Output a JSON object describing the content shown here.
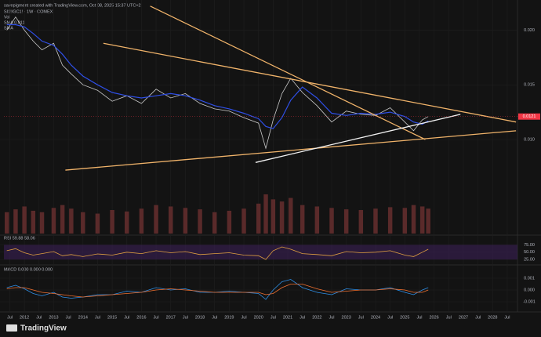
{
  "header": {
    "credit": "savepigment created with TradingView.com, Oct 08, 2025 15:37 UTC+2",
    "symbol": "SI1!/GC1! · 1W · COMEX",
    "volume": "Vol",
    "sma": "SMA 0.011",
    "sma2": "SMA",
    "brand": "TradingView"
  },
  "chart_data": [
    {
      "type": "line",
      "x": [
        2011.4,
        2011.7,
        2012,
        2012.3,
        2012.6,
        2013,
        2013.3,
        2013.6,
        2014,
        2014.5,
        2015,
        2015.5,
        2016,
        2016.5,
        2017,
        2017.5,
        2018,
        2018.5,
        2019,
        2019.5,
        2020,
        2020.25,
        2020.5,
        2020.8,
        2021.1,
        2021.5,
        2022,
        2022.5,
        2023,
        2023.5,
        2024,
        2024.5,
        2025,
        2025.3,
        2025.6,
        2025.8
      ],
      "series": [
        {
          "name": "SI1!/GC1!",
          "color": "#c9c9c9",
          "values": [
            0.02,
            0.0212,
            0.02,
            0.019,
            0.0182,
            0.0188,
            0.0168,
            0.016,
            0.015,
            0.0145,
            0.0135,
            0.014,
            0.0133,
            0.0146,
            0.0138,
            0.0142,
            0.0133,
            0.0128,
            0.0126,
            0.012,
            0.0115,
            0.0092,
            0.0118,
            0.0142,
            0.0156,
            0.0143,
            0.0131,
            0.0116,
            0.0126,
            0.0123,
            0.0122,
            0.0129,
            0.0116,
            0.0108,
            0.0118,
            0.0121
          ]
        },
        {
          "name": "SMA",
          "color": "#2f4fe6",
          "values": [
            0.0205,
            0.0205,
            0.0203,
            0.0197,
            0.019,
            0.0186,
            0.0178,
            0.0168,
            0.0158,
            0.015,
            0.0143,
            0.014,
            0.0138,
            0.014,
            0.0142,
            0.014,
            0.0136,
            0.0131,
            0.0128,
            0.0124,
            0.0119,
            0.0112,
            0.011,
            0.012,
            0.0136,
            0.0148,
            0.0138,
            0.0124,
            0.0122,
            0.0124,
            0.0123,
            0.0125,
            0.0121,
            0.0116,
            0.0114,
            0.0117
          ]
        }
      ],
      "volume": {
        "color": "#5a2a2a",
        "values": [
          30,
          34,
          38,
          32,
          30,
          36,
          40,
          35,
          30,
          28,
          33,
          31,
          35,
          40,
          38,
          36,
          34,
          30,
          32,
          35,
          42,
          55,
          48,
          45,
          50,
          40,
          38,
          36,
          34,
          33,
          35,
          37,
          36,
          40,
          38,
          35
        ]
      },
      "trendlines": [
        {
          "color": "#f0b36a",
          "x": [
            2016.3,
            2025.7
          ],
          "y": [
            0.0222,
            0.01
          ]
        },
        {
          "color": "#f0b36a",
          "x": [
            2014.7,
            2028.8
          ],
          "y": [
            0.0188,
            0.0116
          ]
        },
        {
          "color": "#f0b36a",
          "x": [
            2013.4,
            2028.8
          ],
          "y": [
            0.0072,
            0.0108
          ]
        },
        {
          "color": "#f2f2f2",
          "x": [
            2019.9,
            2026.9
          ],
          "y": [
            0.0079,
            0.0123
          ]
        }
      ],
      "xlim": [
        2011.3,
        2028.85
      ],
      "ylim": [
        0.0014,
        0.0224
      ],
      "yticks": [
        {
          "value": 0.01,
          "label": "0.010"
        },
        0.015,
        {
          "value": 0.02,
          "label": "0.020"
        }
      ],
      "xticks": [
        {
          "value": 2011.5,
          "label": "Jul"
        },
        2012,
        {
          "value": 2012.5,
          "label": "Jul"
        },
        2013,
        {
          "value": 2013.5,
          "label": "Jul"
        },
        2014,
        {
          "value": 2014.5,
          "label": "Jul"
        },
        2015,
        {
          "value": 2015.5,
          "label": "Jul"
        },
        2016,
        {
          "value": 2016.5,
          "label": "Jul"
        },
        2017,
        {
          "value": 2017.5,
          "label": "Jul"
        },
        2018,
        {
          "value": 2018.5,
          "label": "Jul"
        },
        2019,
        {
          "value": 2019.5,
          "label": "Jul"
        },
        2020,
        {
          "value": 2020.5,
          "label": "Jul"
        },
        2021,
        {
          "value": 2021.5,
          "label": "Jul"
        },
        2022,
        {
          "value": 2022.5,
          "label": "Jul"
        },
        2023,
        {
          "value": 2023.5,
          "label": "Jul"
        },
        2024,
        {
          "value": 2024.5,
          "label": "Jul"
        },
        2025,
        {
          "value": 2025.5,
          "label": "Jul"
        },
        2026,
        {
          "value": 2026.5,
          "label": "Jul"
        },
        2027,
        {
          "value": 2027.5,
          "label": "Jul"
        },
        2028,
        {
          "value": 2028.5,
          "label": "Jul"
        }
      ]
    },
    {
      "type": "line",
      "title": "RSI 59.88 58.06",
      "series": [
        {
          "name": "RSI",
          "color": "#e0a040",
          "values": [
            55,
            62,
            48,
            40,
            45,
            52,
            38,
            42,
            35,
            44,
            40,
            50,
            45,
            55,
            48,
            52,
            42,
            45,
            48,
            40,
            38,
            25,
            55,
            68,
            60,
            45,
            42,
            38,
            52,
            48,
            50,
            55,
            40,
            35,
            50,
            59.88
          ]
        }
      ],
      "ylim": [
        12,
        100
      ],
      "yticks": [
        {
          "value": 75,
          "label": "75.00"
        },
        {
          "value": 50,
          "label": "50.00"
        },
        {
          "value": 25,
          "label": "25.00"
        }
      ]
    },
    {
      "type": "line",
      "title": "MACD 0.000 0.000 0.000",
      "series": [
        {
          "name": "MACD",
          "color": "#2f8fe6",
          "values": [
            0.0002,
            0.0004,
            0.0001,
            -0.0003,
            -0.0005,
            -0.0002,
            -0.0006,
            -0.0007,
            -0.0006,
            -0.0004,
            -0.0004,
            -0.0001,
            -0.0002,
            0.0002,
            0,
            0.0001,
            -0.0002,
            -0.0002,
            -0.0001,
            -0.0002,
            -0.0003,
            -0.0008,
            0,
            0.0007,
            0.0009,
            0.0002,
            -0.0002,
            -0.0004,
            0.0001,
            0,
            0,
            0.0002,
            -0.0002,
            -0.0004,
            0,
            0.0002
          ]
        },
        {
          "name": "Signal",
          "color": "#f07030",
          "values": [
            0.0001,
            0.0002,
            0.0002,
            0,
            -0.0002,
            -0.0003,
            -0.0004,
            -0.0005,
            -0.0006,
            -0.0005,
            -0.0004,
            -0.0003,
            -0.0002,
            0,
            0.0001,
            0,
            -0.0001,
            -0.0002,
            -0.0002,
            -0.0002,
            -0.0002,
            -0.0004,
            -0.0003,
            0.0002,
            0.0005,
            0.0005,
            0.0001,
            -0.0002,
            -0.0001,
            0,
            0,
            0.0001,
            0,
            -0.0002,
            -0.0002,
            0
          ]
        }
      ],
      "ylim": [
        -0.0018,
        0.002
      ],
      "yticks": [
        {
          "value": 0.001,
          "label": "0.001"
        },
        {
          "value": 0,
          "label": "0.000"
        },
        {
          "value": -0.001,
          "label": "-0.001"
        }
      ]
    }
  ]
}
